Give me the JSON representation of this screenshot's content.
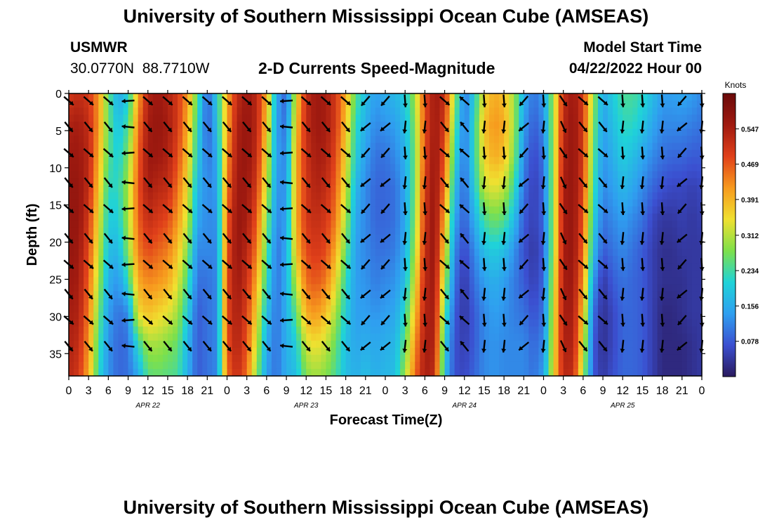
{
  "header": {
    "title": "University of Southern Mississippi Ocean Cube (AMSEAS)",
    "station": "USMWR",
    "coords": "30.0770N  88.7710W",
    "subtitle": "2-D Currents Speed-Magnitude",
    "start_label": "Model Start Time",
    "start_value": "04/22/2022 Hour 00",
    "footer_title": "University of Southern Mississippi Ocean Cube (AMSEAS)"
  },
  "colors": {
    "scale": [
      "#2a1a5e",
      "#3b4fd0",
      "#2f9ff0",
      "#1fd3d8",
      "#7ee04a",
      "#f0e030",
      "#f79a1e",
      "#e0401a",
      "#a01a10",
      "#6a0a0a"
    ],
    "arrow": "#000000"
  },
  "chart_data": {
    "type": "heatmap",
    "xlabel": "Forecast Time(Z)",
    "ylabel": "Depth (ft)",
    "colorbar_label": "Knots",
    "x_range_hours": [
      0,
      96
    ],
    "y_range_ft": [
      0,
      38
    ],
    "x_ticks": [
      {
        "h": 0,
        "label": "0"
      },
      {
        "h": 3,
        "label": "3"
      },
      {
        "h": 6,
        "label": "6"
      },
      {
        "h": 9,
        "label": "9"
      },
      {
        "h": 12,
        "label": "12"
      },
      {
        "h": 15,
        "label": "15"
      },
      {
        "h": 18,
        "label": "18"
      },
      {
        "h": 21,
        "label": "21"
      },
      {
        "h": 24,
        "label": "0"
      },
      {
        "h": 27,
        "label": "3"
      },
      {
        "h": 30,
        "label": "6"
      },
      {
        "h": 33,
        "label": "9"
      },
      {
        "h": 36,
        "label": "12"
      },
      {
        "h": 39,
        "label": "15"
      },
      {
        "h": 42,
        "label": "18"
      },
      {
        "h": 45,
        "label": "21"
      },
      {
        "h": 48,
        "label": "0"
      },
      {
        "h": 51,
        "label": "3"
      },
      {
        "h": 54,
        "label": "6"
      },
      {
        "h": 57,
        "label": "9"
      },
      {
        "h": 60,
        "label": "12"
      },
      {
        "h": 63,
        "label": "15"
      },
      {
        "h": 66,
        "label": "18"
      },
      {
        "h": 69,
        "label": "21"
      },
      {
        "h": 72,
        "label": "0"
      },
      {
        "h": 75,
        "label": "3"
      },
      {
        "h": 78,
        "label": "6"
      },
      {
        "h": 81,
        "label": "9"
      },
      {
        "h": 84,
        "label": "12"
      },
      {
        "h": 87,
        "label": "15"
      },
      {
        "h": 90,
        "label": "18"
      },
      {
        "h": 93,
        "label": "21"
      },
      {
        "h": 96,
        "label": "0"
      }
    ],
    "day_labels": [
      {
        "h": 12,
        "label": "APR 22"
      },
      {
        "h": 36,
        "label": "APR 23"
      },
      {
        "h": 60,
        "label": "APR 24"
      },
      {
        "h": 84,
        "label": "APR 25"
      }
    ],
    "y_ticks": [
      0,
      5,
      10,
      15,
      20,
      25,
      30,
      35
    ],
    "colorbar_ticks": [
      0.078,
      0.156,
      0.234,
      0.312,
      0.391,
      0.469,
      0.547
    ],
    "colorbar_range": [
      0,
      0.625
    ],
    "speed_columns": [
      {
        "h": 0,
        "v": [
          0.5,
          0.54,
          0.56,
          0.57,
          0.57,
          0.57,
          0.56,
          0.55,
          0.54,
          0.53
        ]
      },
      {
        "h": 1.5,
        "v": [
          0.52,
          0.55,
          0.56,
          0.57,
          0.57,
          0.56,
          0.55,
          0.54,
          0.52,
          0.5
        ]
      },
      {
        "h": 3,
        "v": [
          0.5,
          0.52,
          0.53,
          0.52,
          0.5,
          0.48,
          0.46,
          0.44,
          0.42,
          0.4
        ]
      },
      {
        "h": 4.5,
        "v": [
          0.42,
          0.42,
          0.4,
          0.38,
          0.35,
          0.33,
          0.3,
          0.27,
          0.24,
          0.22
        ]
      },
      {
        "h": 6,
        "v": [
          0.26,
          0.26,
          0.25,
          0.22,
          0.2,
          0.18,
          0.16,
          0.14,
          0.13,
          0.13
        ]
      },
      {
        "h": 7.5,
        "v": [
          0.15,
          0.18,
          0.2,
          0.22,
          0.2,
          0.17,
          0.13,
          0.1,
          0.09,
          0.09
        ]
      },
      {
        "h": 9,
        "v": [
          0.2,
          0.24,
          0.28,
          0.3,
          0.3,
          0.28,
          0.22,
          0.12,
          0.1,
          0.1
        ]
      },
      {
        "h": 10.5,
        "v": [
          0.4,
          0.44,
          0.46,
          0.47,
          0.46,
          0.44,
          0.4,
          0.35,
          0.22,
          0.15
        ]
      },
      {
        "h": 12,
        "v": [
          0.54,
          0.55,
          0.56,
          0.55,
          0.52,
          0.48,
          0.43,
          0.38,
          0.3,
          0.25
        ]
      },
      {
        "h": 13.5,
        "v": [
          0.56,
          0.57,
          0.56,
          0.53,
          0.5,
          0.46,
          0.42,
          0.36,
          0.3,
          0.26
        ]
      },
      {
        "h": 15,
        "v": [
          0.54,
          0.55,
          0.54,
          0.52,
          0.48,
          0.44,
          0.4,
          0.34,
          0.28,
          0.25
        ]
      },
      {
        "h": 16.5,
        "v": [
          0.5,
          0.5,
          0.48,
          0.45,
          0.42,
          0.38,
          0.34,
          0.3,
          0.26,
          0.24
        ]
      },
      {
        "h": 18,
        "v": [
          0.42,
          0.4,
          0.38,
          0.35,
          0.32,
          0.28,
          0.24,
          0.2,
          0.17,
          0.16
        ]
      },
      {
        "h": 19.5,
        "v": [
          0.25,
          0.22,
          0.2,
          0.17,
          0.15,
          0.12,
          0.1,
          0.08,
          0.08,
          0.08
        ]
      },
      {
        "h": 21,
        "v": [
          0.08,
          0.08,
          0.1,
          0.12,
          0.12,
          0.12,
          0.1,
          0.1,
          0.1,
          0.1
        ]
      },
      {
        "h": 22.5,
        "v": [
          0.2,
          0.18,
          0.15,
          0.14,
          0.13,
          0.12,
          0.12,
          0.12,
          0.12,
          0.12
        ]
      },
      {
        "h": 24,
        "v": [
          0.4,
          0.4,
          0.42,
          0.44,
          0.46,
          0.47,
          0.48,
          0.48,
          0.47,
          0.45
        ]
      },
      {
        "h": 25.5,
        "v": [
          0.52,
          0.54,
          0.55,
          0.56,
          0.57,
          0.57,
          0.56,
          0.55,
          0.54,
          0.52
        ]
      },
      {
        "h": 27,
        "v": [
          0.56,
          0.57,
          0.57,
          0.56,
          0.55,
          0.53,
          0.51,
          0.49,
          0.47,
          0.45
        ]
      },
      {
        "h": 28.5,
        "v": [
          0.53,
          0.53,
          0.52,
          0.5,
          0.47,
          0.44,
          0.4,
          0.36,
          0.32,
          0.28
        ]
      },
      {
        "h": 30,
        "v": [
          0.4,
          0.38,
          0.35,
          0.32,
          0.28,
          0.25,
          0.22,
          0.18,
          0.15,
          0.14
        ]
      },
      {
        "h": 31.5,
        "v": [
          0.15,
          0.14,
          0.14,
          0.13,
          0.12,
          0.1,
          0.1,
          0.1,
          0.1,
          0.1
        ]
      },
      {
        "h": 33,
        "v": [
          0.08,
          0.1,
          0.12,
          0.13,
          0.14,
          0.15,
          0.16,
          0.16,
          0.16,
          0.16
        ]
      },
      {
        "h": 34.5,
        "v": [
          0.35,
          0.38,
          0.4,
          0.4,
          0.4,
          0.38,
          0.32,
          0.26,
          0.2,
          0.18
        ]
      },
      {
        "h": 36,
        "v": [
          0.52,
          0.52,
          0.51,
          0.5,
          0.5,
          0.48,
          0.45,
          0.4,
          0.33,
          0.28
        ]
      },
      {
        "h": 37.5,
        "v": [
          0.56,
          0.56,
          0.55,
          0.54,
          0.52,
          0.5,
          0.47,
          0.42,
          0.35,
          0.3
        ]
      },
      {
        "h": 39,
        "v": [
          0.55,
          0.55,
          0.54,
          0.52,
          0.5,
          0.48,
          0.44,
          0.38,
          0.32,
          0.28
        ]
      },
      {
        "h": 40.5,
        "v": [
          0.5,
          0.5,
          0.48,
          0.46,
          0.44,
          0.4,
          0.35,
          0.3,
          0.26,
          0.24
        ]
      },
      {
        "h": 42,
        "v": [
          0.4,
          0.38,
          0.36,
          0.33,
          0.3,
          0.26,
          0.22,
          0.2,
          0.18,
          0.18
        ]
      },
      {
        "h": 43.5,
        "v": [
          0.25,
          0.22,
          0.2,
          0.17,
          0.15,
          0.14,
          0.14,
          0.14,
          0.15,
          0.16
        ]
      },
      {
        "h": 45,
        "v": [
          0.18,
          0.16,
          0.14,
          0.12,
          0.12,
          0.12,
          0.13,
          0.14,
          0.16,
          0.18
        ]
      },
      {
        "h": 46.5,
        "v": [
          0.14,
          0.12,
          0.1,
          0.09,
          0.09,
          0.1,
          0.11,
          0.13,
          0.15,
          0.16
        ]
      },
      {
        "h": 48,
        "v": [
          0.16,
          0.13,
          0.1,
          0.09,
          0.09,
          0.1,
          0.12,
          0.14,
          0.16,
          0.17
        ]
      },
      {
        "h": 49.5,
        "v": [
          0.17,
          0.14,
          0.12,
          0.1,
          0.1,
          0.11,
          0.13,
          0.15,
          0.17,
          0.18
        ]
      },
      {
        "h": 51,
        "v": [
          0.2,
          0.18,
          0.16,
          0.15,
          0.15,
          0.16,
          0.18,
          0.22,
          0.26,
          0.3
        ]
      },
      {
        "h": 52.5,
        "v": [
          0.3,
          0.28,
          0.27,
          0.27,
          0.28,
          0.3,
          0.34,
          0.38,
          0.42,
          0.45
        ]
      },
      {
        "h": 54,
        "v": [
          0.48,
          0.48,
          0.48,
          0.5,
          0.51,
          0.52,
          0.53,
          0.54,
          0.55,
          0.55
        ]
      },
      {
        "h": 55.5,
        "v": [
          0.56,
          0.56,
          0.57,
          0.57,
          0.57,
          0.57,
          0.56,
          0.55,
          0.54,
          0.52
        ]
      },
      {
        "h": 57,
        "v": [
          0.52,
          0.5,
          0.47,
          0.44,
          0.4,
          0.36,
          0.3,
          0.25,
          0.2,
          0.18
        ]
      },
      {
        "h": 58.5,
        "v": [
          0.3,
          0.26,
          0.22,
          0.18,
          0.15,
          0.12,
          0.1,
          0.08,
          0.07,
          0.07
        ]
      },
      {
        "h": 60,
        "v": [
          0.1,
          0.1,
          0.1,
          0.09,
          0.08,
          0.06,
          0.04,
          0.04,
          0.05,
          0.06
        ]
      },
      {
        "h": 61.5,
        "v": [
          0.2,
          0.22,
          0.22,
          0.2,
          0.16,
          0.12,
          0.1,
          0.08,
          0.08,
          0.09
        ]
      },
      {
        "h": 63,
        "v": [
          0.35,
          0.38,
          0.36,
          0.32,
          0.24,
          0.18,
          0.14,
          0.12,
          0.12,
          0.12
        ]
      },
      {
        "h": 64.5,
        "v": [
          0.4,
          0.42,
          0.4,
          0.34,
          0.27,
          0.2,
          0.16,
          0.14,
          0.13,
          0.13
        ]
      },
      {
        "h": 66,
        "v": [
          0.38,
          0.4,
          0.38,
          0.32,
          0.25,
          0.18,
          0.14,
          0.13,
          0.12,
          0.12
        ]
      },
      {
        "h": 67.5,
        "v": [
          0.3,
          0.3,
          0.28,
          0.23,
          0.18,
          0.13,
          0.11,
          0.11,
          0.12,
          0.12
        ]
      },
      {
        "h": 69,
        "v": [
          0.16,
          0.14,
          0.12,
          0.1,
          0.08,
          0.07,
          0.08,
          0.1,
          0.12,
          0.12
        ]
      },
      {
        "h": 70.5,
        "v": [
          0.1,
          0.08,
          0.06,
          0.05,
          0.05,
          0.04,
          0.05,
          0.07,
          0.09,
          0.1
        ]
      },
      {
        "h": 72,
        "v": [
          0.14,
          0.12,
          0.1,
          0.09,
          0.09,
          0.08,
          0.09,
          0.1,
          0.12,
          0.14
        ]
      },
      {
        "h": 73.5,
        "v": [
          0.3,
          0.3,
          0.3,
          0.3,
          0.3,
          0.3,
          0.32,
          0.33,
          0.34,
          0.35
        ]
      },
      {
        "h": 75,
        "v": [
          0.52,
          0.53,
          0.54,
          0.55,
          0.55,
          0.55,
          0.55,
          0.55,
          0.54,
          0.53
        ]
      },
      {
        "h": 76.5,
        "v": [
          0.56,
          0.57,
          0.57,
          0.57,
          0.57,
          0.57,
          0.56,
          0.55,
          0.54,
          0.52
        ]
      },
      {
        "h": 78,
        "v": [
          0.5,
          0.5,
          0.5,
          0.49,
          0.47,
          0.45,
          0.42,
          0.38,
          0.34,
          0.3
        ]
      },
      {
        "h": 79.5,
        "v": [
          0.3,
          0.28,
          0.26,
          0.24,
          0.21,
          0.18,
          0.14,
          0.1,
          0.08,
          0.08
        ]
      },
      {
        "h": 81,
        "v": [
          0.15,
          0.14,
          0.13,
          0.12,
          0.1,
          0.08,
          0.04,
          0.03,
          0.03,
          0.04
        ]
      },
      {
        "h": 82.5,
        "v": [
          0.2,
          0.18,
          0.16,
          0.14,
          0.12,
          0.1,
          0.08,
          0.06,
          0.06,
          0.07
        ]
      },
      {
        "h": 84,
        "v": [
          0.24,
          0.22,
          0.2,
          0.17,
          0.14,
          0.12,
          0.1,
          0.09,
          0.09,
          0.09
        ]
      },
      {
        "h": 85.5,
        "v": [
          0.24,
          0.22,
          0.18,
          0.15,
          0.12,
          0.1,
          0.09,
          0.09,
          0.09,
          0.09
        ]
      },
      {
        "h": 87,
        "v": [
          0.22,
          0.19,
          0.15,
          0.12,
          0.1,
          0.08,
          0.08,
          0.08,
          0.08,
          0.08
        ]
      },
      {
        "h": 88.5,
        "v": [
          0.18,
          0.15,
          0.12,
          0.09,
          0.06,
          0.05,
          0.05,
          0.05,
          0.05,
          0.05
        ]
      },
      {
        "h": 90,
        "v": [
          0.14,
          0.12,
          0.1,
          0.07,
          0.04,
          0.03,
          0.03,
          0.02,
          0.02,
          0.02
        ]
      },
      {
        "h": 91.5,
        "v": [
          0.14,
          0.12,
          0.09,
          0.06,
          0.04,
          0.03,
          0.03,
          0.02,
          0.02,
          0.02
        ]
      },
      {
        "h": 93,
        "v": [
          0.15,
          0.12,
          0.09,
          0.06,
          0.05,
          0.04,
          0.03,
          0.03,
          0.02,
          0.02
        ]
      },
      {
        "h": 94.5,
        "v": [
          0.14,
          0.11,
          0.08,
          0.05,
          0.04,
          0.04,
          0.04,
          0.04,
          0.03,
          0.03
        ]
      },
      {
        "h": 96,
        "v": [
          0.12,
          0.1,
          0.08,
          0.06,
          0.05,
          0.04,
          0.04,
          0.04,
          0.04,
          0.04
        ]
      }
    ],
    "arrow_depths_ft": [
      1,
      4.5,
      8,
      12,
      15.5,
      19.5,
      23,
      27,
      30.5,
      34
    ],
    "arrow_hours": [
      0,
      3,
      6,
      9,
      12,
      15,
      18,
      21,
      24,
      27,
      30,
      33,
      36,
      39,
      42,
      45,
      48,
      51,
      54,
      57,
      60,
      63,
      66,
      69,
      72,
      75,
      78,
      81,
      84,
      87,
      90,
      93,
      96
    ],
    "arrow_direction_deg": [
      135,
      135,
      135,
      270,
      135,
      135,
      135,
      135,
      135,
      135,
      135,
      270,
      135,
      135,
      135,
      225,
      225,
      180,
      180,
      135,
      315,
      180,
      180,
      225,
      180,
      150,
      135,
      135,
      180,
      180,
      180,
      225,
      180
    ]
  }
}
